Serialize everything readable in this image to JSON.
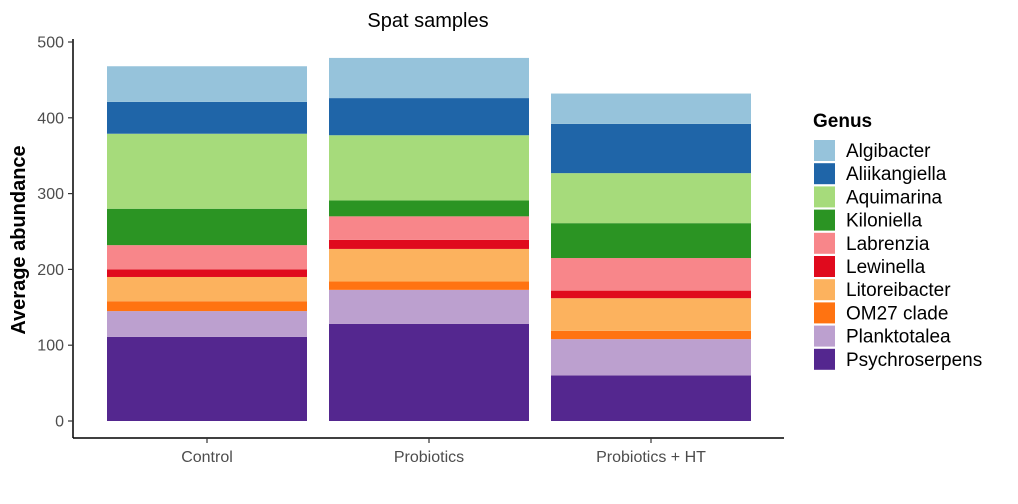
{
  "chart_data": {
    "type": "bar",
    "stacked": true,
    "title": "Spat samples",
    "xlabel": "",
    "ylabel": "Average abundance",
    "ylim": [
      0,
      500
    ],
    "yticks": [
      0,
      100,
      200,
      300,
      400,
      500
    ],
    "grid": false,
    "legend_position": "right",
    "legend_title": "Genus",
    "categories": [
      "Control",
      "Probiotics",
      "Probiotics + HT"
    ],
    "series": [
      {
        "name": "Psychroserpens",
        "color": "#54278f",
        "values": [
          111,
          128,
          60
        ]
      },
      {
        "name": "Planktotalea",
        "color": "#bca0cf",
        "values": [
          34,
          45,
          48
        ]
      },
      {
        "name": "OM27 clade",
        "color": "#ff7311",
        "values": [
          13,
          11,
          11
        ]
      },
      {
        "name": "Litoreibacter",
        "color": "#fcb25e",
        "values": [
          32,
          43,
          43
        ]
      },
      {
        "name": "Lewinella",
        "color": "#e00a1d",
        "values": [
          10,
          12,
          10
        ]
      },
      {
        "name": "Labrenzia",
        "color": "#f8868a",
        "values": [
          32,
          31,
          43
        ]
      },
      {
        "name": "Kiloniella",
        "color": "#2b9423",
        "values": [
          48,
          21,
          46
        ]
      },
      {
        "name": "Aquimarina",
        "color": "#a6db7b",
        "values": [
          99,
          86,
          66
        ]
      },
      {
        "name": "Aliikangiella",
        "color": "#1f65a8",
        "values": [
          42,
          49,
          65
        ]
      },
      {
        "name": "Algibacter",
        "color": "#96c3db",
        "values": [
          47,
          53,
          40
        ]
      }
    ]
  }
}
